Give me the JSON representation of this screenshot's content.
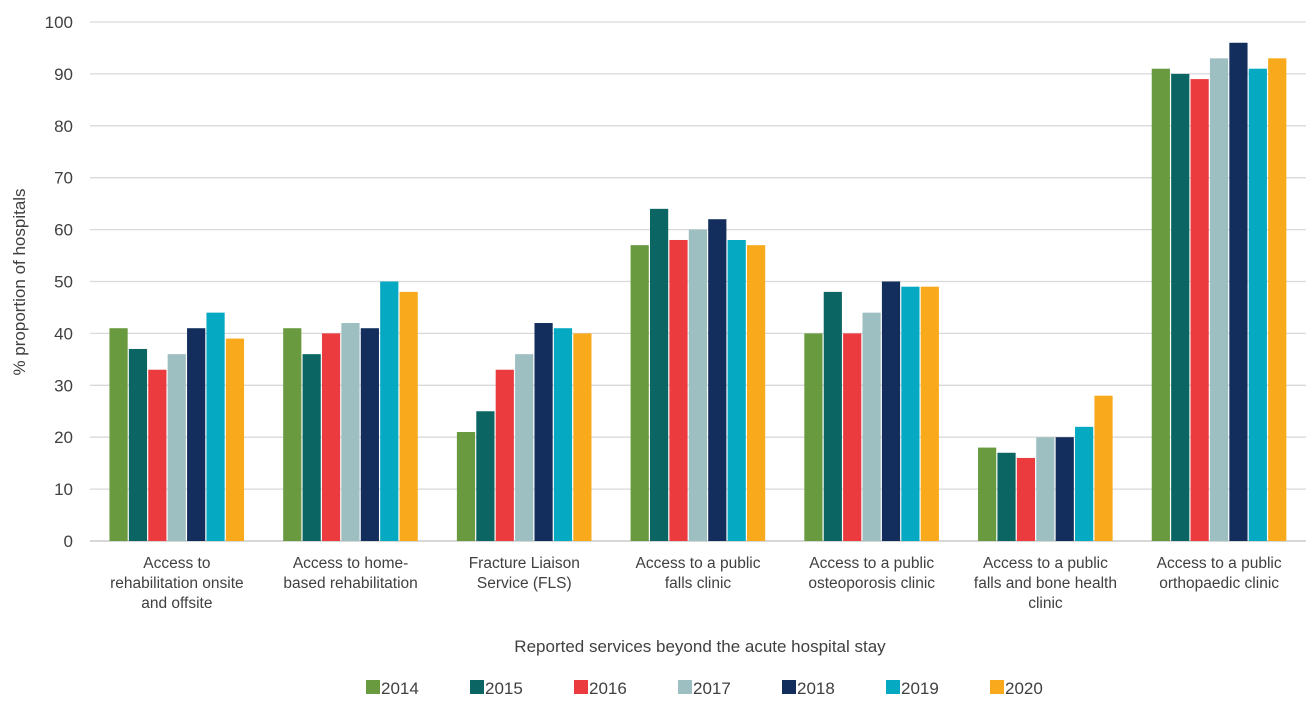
{
  "chart_data": {
    "type": "bar",
    "xlabel": "Reported services beyond the acute hospital stay",
    "ylabel": "% proportion of hospitals",
    "ylim": [
      0,
      100
    ],
    "yticks": [
      0,
      10,
      20,
      30,
      40,
      50,
      60,
      70,
      80,
      90,
      100
    ],
    "grid": true,
    "legend_position": "bottom",
    "categories": [
      "Access to rehabilitation onsite and offsite",
      "Access to home-based rehabilitation",
      "Fracture Liaison Service (FLS)",
      "Access to a public falls clinic",
      "Access to a public osteoporosis clinic",
      "Access to a public falls and bone health clinic",
      "Access to a public orthopaedic clinic"
    ],
    "category_label_lines": [
      [
        "Access to",
        "rehabilitation onsite",
        "and offsite"
      ],
      [
        "Access to home-",
        "based rehabilitation"
      ],
      [
        "Fracture Liaison",
        "Service (FLS)"
      ],
      [
        "Access to a public",
        "falls clinic"
      ],
      [
        "Access to a public",
        "osteoporosis clinic"
      ],
      [
        "Access to a public",
        "falls and bone health",
        "clinic"
      ],
      [
        "Access to a public",
        "orthopaedic clinic"
      ]
    ],
    "series": [
      {
        "name": "2014",
        "color": "#6a9a3f",
        "values": [
          41,
          41,
          21,
          57,
          40,
          18,
          91
        ]
      },
      {
        "name": "2015",
        "color": "#0b6663",
        "values": [
          37,
          36,
          25,
          64,
          48,
          17,
          90
        ]
      },
      {
        "name": "2016",
        "color": "#ec3b3f",
        "values": [
          33,
          40,
          33,
          58,
          40,
          16,
          89
        ]
      },
      {
        "name": "2017",
        "color": "#9ebfc2",
        "values": [
          36,
          42,
          36,
          60,
          44,
          20,
          93
        ]
      },
      {
        "name": "2018",
        "color": "#132e5c",
        "values": [
          41,
          41,
          42,
          62,
          50,
          20,
          96
        ]
      },
      {
        "name": "2019",
        "color": "#06a9c2",
        "values": [
          44,
          50,
          41,
          58,
          49,
          22,
          91
        ]
      },
      {
        "name": "2020",
        "color": "#f8aa1c",
        "values": [
          39,
          48,
          40,
          57,
          49,
          28,
          93
        ]
      }
    ]
  }
}
